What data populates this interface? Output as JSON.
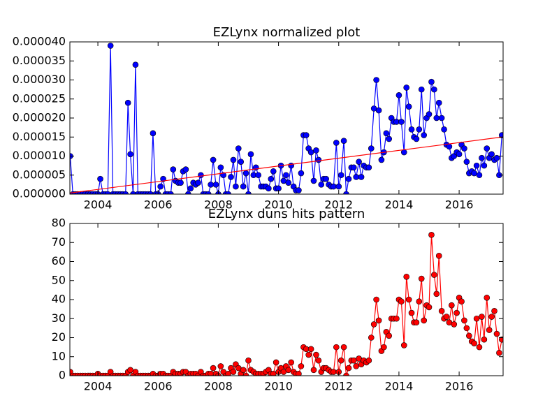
{
  "chart_data": [
    {
      "type": "line",
      "title": "EZLynx normalized plot",
      "xlim": [
        2003.07,
        2017.46
      ],
      "xticks": [
        2004,
        2006,
        2008,
        2010,
        2012,
        2014,
        2016
      ],
      "ylim": [
        0,
        4e-05
      ],
      "yticks": [
        {
          "value": 0,
          "label": "0.000000"
        },
        {
          "value": 5e-06,
          "label": "0.000005"
        },
        {
          "value": 1e-05,
          "label": "0.000010"
        },
        {
          "value": 1.5e-05,
          "label": "0.000015"
        },
        {
          "value": 2e-05,
          "label": "0.000020"
        },
        {
          "value": 2.5e-05,
          "label": "0.000025"
        },
        {
          "value": 3e-05,
          "label": "0.000030"
        },
        {
          "value": 3.5e-05,
          "label": "0.000035"
        },
        {
          "value": 4e-05,
          "label": "0.000040"
        }
      ],
      "x": [
        2003.08,
        2003.17,
        2003.25,
        2003.33,
        2003.42,
        2003.5,
        2003.58,
        2003.67,
        2003.75,
        2003.83,
        2003.92,
        2004.0,
        2004.08,
        2004.17,
        2004.25,
        2004.33,
        2004.42,
        2004.5,
        2004.58,
        2004.67,
        2004.75,
        2004.83,
        2004.92,
        2005.0,
        2005.08,
        2005.17,
        2005.25,
        2005.33,
        2005.42,
        2005.5,
        2005.58,
        2005.67,
        2005.75,
        2005.83,
        2005.92,
        2006.0,
        2006.08,
        2006.17,
        2006.25,
        2006.33,
        2006.42,
        2006.5,
        2006.58,
        2006.67,
        2006.75,
        2006.83,
        2006.92,
        2007.0,
        2007.08,
        2007.17,
        2007.25,
        2007.33,
        2007.42,
        2007.5,
        2007.58,
        2007.67,
        2007.75,
        2007.83,
        2007.92,
        2008.0,
        2008.08,
        2008.17,
        2008.25,
        2008.33,
        2008.42,
        2008.5,
        2008.58,
        2008.67,
        2008.75,
        2008.83,
        2008.92,
        2009.0,
        2009.08,
        2009.17,
        2009.25,
        2009.33,
        2009.42,
        2009.5,
        2009.58,
        2009.67,
        2009.75,
        2009.83,
        2009.92,
        2010.0,
        2010.08,
        2010.17,
        2010.25,
        2010.33,
        2010.42,
        2010.5,
        2010.58,
        2010.67,
        2010.75,
        2010.83,
        2010.92,
        2011.0,
        2011.08,
        2011.17,
        2011.25,
        2011.33,
        2011.42,
        2011.5,
        2011.58,
        2011.67,
        2011.75,
        2011.83,
        2011.92,
        2012.0,
        2012.08,
        2012.17,
        2012.25,
        2012.33,
        2012.42,
        2012.5,
        2012.58,
        2012.67,
        2012.75,
        2012.83,
        2012.92,
        2013.0,
        2013.08,
        2013.17,
        2013.25,
        2013.33,
        2013.42,
        2013.5,
        2013.58,
        2013.67,
        2013.75,
        2013.83,
        2013.92,
        2014.0,
        2014.08,
        2014.17,
        2014.25,
        2014.33,
        2014.42,
        2014.5,
        2014.58,
        2014.67,
        2014.75,
        2014.83,
        2014.92,
        2015.0,
        2015.08,
        2015.17,
        2015.25,
        2015.33,
        2015.42,
        2015.5,
        2015.58,
        2015.67,
        2015.75,
        2015.83,
        2015.92,
        2016.0,
        2016.08,
        2016.17,
        2016.25,
        2016.33,
        2016.42,
        2016.5,
        2016.58,
        2016.67,
        2016.75,
        2016.83,
        2016.92,
        2017.0,
        2017.08,
        2017.17,
        2017.25,
        2017.33,
        2017.42
      ],
      "series": [
        {
          "color": "#0000ff",
          "markers": true,
          "values": [
            1e-05,
            0,
            0,
            0,
            0,
            0,
            0,
            0,
            0,
            0,
            0,
            0,
            4e-06,
            0,
            0,
            0,
            3.9e-05,
            0,
            0,
            0,
            0,
            0,
            0,
            2.4e-05,
            1.05e-05,
            0,
            3.4e-05,
            0,
            0,
            0,
            0,
            0,
            0,
            1.6e-05,
            0,
            0,
            2e-06,
            4e-06,
            0,
            0,
            0,
            6.5e-06,
            3.5e-06,
            3e-06,
            3e-06,
            6e-06,
            6.5e-06,
            0,
            1.5e-06,
            3e-06,
            2.5e-06,
            3e-06,
            5e-06,
            0,
            0,
            0,
            2.5e-06,
            9e-06,
            2.5e-06,
            0,
            7e-06,
            5e-06,
            0,
            0,
            4.5e-06,
            9e-06,
            2e-06,
            1.2e-05,
            8.5e-06,
            2e-06,
            5.5e-06,
            0,
            1.05e-05,
            5e-06,
            7e-06,
            5e-06,
            2e-06,
            2e-06,
            2e-06,
            1.5e-06,
            4e-06,
            6e-06,
            1.5e-06,
            1.5e-06,
            7.5e-06,
            3.5e-06,
            5e-06,
            3e-06,
            7.5e-06,
            2e-06,
            1e-06,
            1e-06,
            5.5e-06,
            1.55e-05,
            1.55e-05,
            1.2e-05,
            1.1e-05,
            3.5e-06,
            1.15e-05,
            9e-06,
            2.5e-06,
            4e-06,
            4e-06,
            2.5e-06,
            2e-06,
            2e-06,
            1.35e-05,
            2e-06,
            5e-06,
            1.4e-05,
            0,
            4e-06,
            7e-06,
            7e-06,
            4.5e-06,
            8.5e-06,
            4.5e-06,
            7.5e-06,
            7e-06,
            7e-06,
            1.2e-05,
            2.25e-05,
            3e-05,
            2.2e-05,
            9e-06,
            1.1e-05,
            1.6e-05,
            1.45e-05,
            2e-05,
            1.9e-05,
            1.9e-05,
            2.6e-05,
            1.9e-05,
            1.1e-05,
            2.8e-05,
            2.3e-05,
            1.7e-05,
            1.5e-05,
            1.45e-05,
            1.7e-05,
            2.75e-05,
            1.55e-05,
            2e-05,
            2.1e-05,
            2.95e-05,
            2.75e-05,
            2e-05,
            2.4e-05,
            2e-05,
            1.7e-05,
            1.3e-05,
            1.25e-05,
            9.5e-06,
            1e-05,
            1.1e-05,
            1.05e-05,
            1.3e-05,
            1.2e-05,
            8.5e-06,
            5.5e-06,
            6e-06,
            5.5e-06,
            7.5e-06,
            5e-06,
            9.5e-06,
            7.5e-06,
            1.2e-05,
            9.5e-06,
            1.05e-05,
            9e-06,
            9.5e-06,
            5e-06,
            1.55e-05
          ]
        },
        {
          "color": "#ff0000",
          "markers": false,
          "x": [
            2003.08,
            2017.42
          ],
          "values": [
            3e-07,
            1.5e-05
          ]
        }
      ]
    },
    {
      "type": "line",
      "title": "EZLynx duns hits pattern",
      "xlim": [
        2003.07,
        2017.46
      ],
      "xticks": [
        2004,
        2006,
        2008,
        2010,
        2012,
        2014,
        2016
      ],
      "ylim": [
        0,
        80
      ],
      "yticks": [
        0,
        10,
        20,
        30,
        40,
        50,
        60,
        70,
        80
      ],
      "x": [
        2003.08,
        2003.17,
        2003.25,
        2003.33,
        2003.42,
        2003.5,
        2003.58,
        2003.67,
        2003.75,
        2003.83,
        2003.92,
        2004.0,
        2004.08,
        2004.17,
        2004.25,
        2004.33,
        2004.42,
        2004.5,
        2004.58,
        2004.67,
        2004.75,
        2004.83,
        2004.92,
        2005.0,
        2005.08,
        2005.17,
        2005.25,
        2005.33,
        2005.42,
        2005.5,
        2005.58,
        2005.67,
        2005.75,
        2005.83,
        2005.92,
        2006.0,
        2006.08,
        2006.17,
        2006.25,
        2006.33,
        2006.42,
        2006.5,
        2006.58,
        2006.67,
        2006.75,
        2006.83,
        2006.92,
        2007.0,
        2007.08,
        2007.17,
        2007.25,
        2007.33,
        2007.42,
        2007.5,
        2007.58,
        2007.67,
        2007.75,
        2007.83,
        2007.92,
        2008.0,
        2008.08,
        2008.17,
        2008.25,
        2008.33,
        2008.42,
        2008.5,
        2008.58,
        2008.67,
        2008.75,
        2008.83,
        2008.92,
        2009.0,
        2009.08,
        2009.17,
        2009.25,
        2009.33,
        2009.42,
        2009.5,
        2009.58,
        2009.67,
        2009.75,
        2009.83,
        2009.92,
        2010.0,
        2010.08,
        2010.17,
        2010.25,
        2010.33,
        2010.42,
        2010.5,
        2010.58,
        2010.67,
        2010.75,
        2010.83,
        2010.92,
        2011.0,
        2011.08,
        2011.17,
        2011.25,
        2011.33,
        2011.42,
        2011.5,
        2011.58,
        2011.67,
        2011.75,
        2011.83,
        2011.92,
        2012.0,
        2012.08,
        2012.17,
        2012.25,
        2012.33,
        2012.42,
        2012.5,
        2012.58,
        2012.67,
        2012.75,
        2012.83,
        2012.92,
        2013.0,
        2013.08,
        2013.17,
        2013.25,
        2013.33,
        2013.42,
        2013.5,
        2013.58,
        2013.67,
        2013.75,
        2013.83,
        2013.92,
        2014.0,
        2014.08,
        2014.17,
        2014.25,
        2014.33,
        2014.42,
        2014.5,
        2014.58,
        2014.67,
        2014.75,
        2014.83,
        2014.92,
        2015.0,
        2015.08,
        2015.17,
        2015.25,
        2015.33,
        2015.42,
        2015.5,
        2015.58,
        2015.67,
        2015.75,
        2015.83,
        2015.92,
        2016.0,
        2016.08,
        2016.17,
        2016.25,
        2016.33,
        2016.42,
        2016.5,
        2016.58,
        2016.67,
        2016.75,
        2016.83,
        2016.92,
        2017.0,
        2017.08,
        2017.17,
        2017.25,
        2017.33,
        2017.42
      ],
      "series": [
        {
          "color": "#ff0000",
          "markers": true,
          "values": [
            2,
            0,
            0,
            0,
            0,
            0,
            0,
            0,
            0,
            0,
            0,
            1,
            0,
            0,
            0,
            0,
            2,
            0,
            0,
            0,
            0,
            0,
            0,
            2,
            3,
            0,
            2,
            0,
            0,
            0,
            0,
            0,
            0,
            1,
            0,
            0,
            1,
            1,
            0,
            0,
            0,
            2,
            1,
            1,
            1,
            2,
            2,
            0,
            1,
            1,
            1,
            0,
            2,
            0,
            0,
            1,
            1,
            4,
            1,
            0,
            5,
            2,
            0,
            1,
            4,
            2,
            6,
            4,
            1,
            3,
            0,
            8,
            3,
            2,
            1,
            1,
            1,
            1,
            2,
            3,
            1,
            1,
            7,
            2,
            4,
            2,
            5,
            3,
            7,
            2,
            1,
            1,
            5,
            15,
            14,
            11,
            14,
            3,
            11,
            8,
            2,
            4,
            4,
            3,
            2,
            2,
            15,
            2,
            8,
            15,
            0,
            4,
            8,
            8,
            5,
            9,
            6,
            8,
            7,
            8,
            20,
            27,
            40,
            29,
            13,
            15,
            23,
            21,
            30,
            30,
            30,
            40,
            39,
            16,
            52,
            40,
            33,
            28,
            28,
            39,
            51,
            29,
            37,
            36,
            74,
            53,
            43,
            63,
            34,
            30,
            31,
            28,
            37,
            27,
            33,
            41,
            39,
            29,
            25,
            21,
            18,
            17,
            30,
            15,
            31,
            19,
            41,
            24,
            31,
            34,
            22,
            12,
            19
          ]
        }
      ]
    }
  ]
}
